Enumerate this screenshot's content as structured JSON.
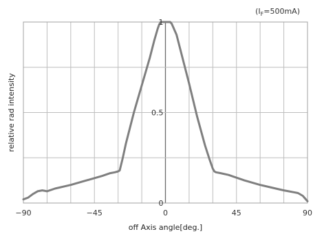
{
  "chart_data": {
    "type": "line",
    "xlabel": "off Axis angle[deg.]",
    "ylabel": "relative rad intensity",
    "condition": "(I",
    "condition_sub": "F",
    "condition_rest": "=500mA)",
    "xlim": [
      -90,
      90
    ],
    "ylim": [
      0,
      1
    ],
    "x_ticks": [
      -90,
      -45,
      0,
      45,
      90
    ],
    "x_tick_labels": [
      "−90",
      "−45",
      "0",
      "45",
      "90"
    ],
    "y_ticks": [
      0,
      0.5,
      1
    ],
    "y_tick_labels": [
      "0",
      "0.5",
      "1"
    ],
    "grid": true,
    "x_grid_step": 15,
    "y_grid_step": 0.25,
    "series": [
      {
        "color": "#7f7f7f",
        "x": [
          -90,
          -87,
          -84,
          -81,
          -78,
          -75,
          -70,
          -60,
          -50,
          -40,
          -35,
          -32,
          -30,
          -29,
          -27,
          -25,
          -20,
          -15,
          -10,
          -7,
          -5,
          -4,
          -3,
          -2,
          0,
          2,
          3,
          4,
          5,
          7,
          10,
          15,
          20,
          25,
          28,
          30,
          31,
          32,
          35,
          40,
          50,
          60,
          70,
          75,
          78,
          81,
          84,
          87,
          90
        ],
        "y": [
          0.02,
          0.03,
          0.05,
          0.065,
          0.07,
          0.065,
          0.08,
          0.1,
          0.125,
          0.15,
          0.165,
          0.17,
          0.175,
          0.18,
          0.25,
          0.33,
          0.5,
          0.65,
          0.8,
          0.9,
          0.96,
          0.985,
          1.0,
          1.0,
          1.0,
          1.0,
          1.0,
          0.99,
          0.97,
          0.93,
          0.83,
          0.66,
          0.48,
          0.32,
          0.24,
          0.19,
          0.175,
          0.17,
          0.165,
          0.155,
          0.125,
          0.1,
          0.08,
          0.07,
          0.065,
          0.06,
          0.055,
          0.04,
          0.01
        ]
      }
    ]
  }
}
